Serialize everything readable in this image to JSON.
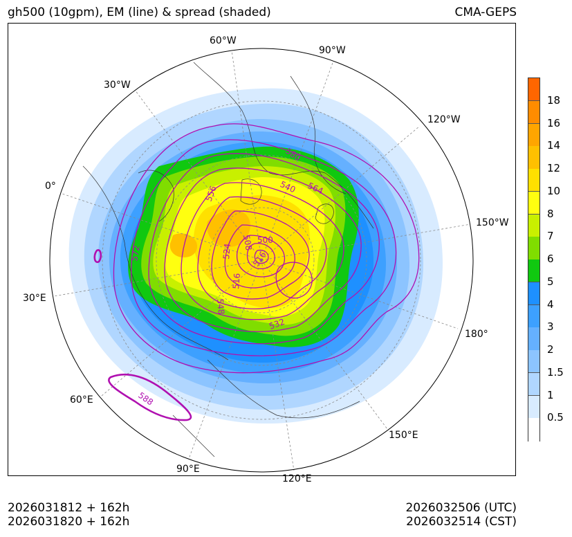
{
  "header": {
    "title_left": "gh500 (10gpm), EM (line) & spread (shaded)",
    "title_right": "CMA-GEPS"
  },
  "footer": {
    "init_utc": "2026031812 + 162h",
    "init_cst": "2026031820 + 162h",
    "valid_utc": "2026032506 (UTC)",
    "valid_cst": "2026032514 (CST)"
  },
  "map": {
    "projection": "north-polar-stereographic",
    "longitude_labels": [
      "60°W",
      "90°W",
      "30°W",
      "120°W",
      "0°",
      "150°W",
      "30°E",
      "180°",
      "60°E",
      "150°E",
      "90°E",
      "120°E"
    ],
    "contour_labels": [
      "580",
      "564",
      "540",
      "556",
      "508",
      "500",
      "572",
      "524",
      "516",
      "516",
      "548",
      "532",
      "588"
    ],
    "colors": {
      "contour": "#b010b0",
      "land_outline": "#333333",
      "grid": "#888888"
    }
  },
  "colorbar": {
    "labels": [
      "18",
      "16",
      "14",
      "12",
      "10",
      "8",
      "7",
      "6",
      "5",
      "4",
      "3",
      "2",
      "1.5",
      "1",
      "0.5"
    ],
    "colors": [
      "#ff6600",
      "#ff8c00",
      "#ffa500",
      "#ffc000",
      "#ffe000",
      "#ffff10",
      "#c8f000",
      "#80dd00",
      "#10c810",
      "#1e90ff",
      "#3da0ff",
      "#65b0ff",
      "#8cc4ff",
      "#b0d6ff",
      "#d8ebff",
      "#ffffff"
    ]
  }
}
